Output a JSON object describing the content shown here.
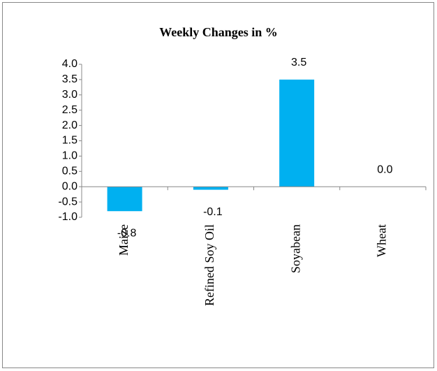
{
  "chart_data": {
    "type": "bar",
    "title": "Weekly Changes in %",
    "categories": [
      "Maize",
      "Refined Soy Oil",
      "Soyabean",
      "Wheat"
    ],
    "values": [
      -0.8,
      -0.1,
      3.5,
      0.0
    ],
    "value_labels": [
      "-0.8",
      "-0.1",
      "3.5",
      "0.0"
    ],
    "color": "#00b0f0",
    "ylim": [
      -1.0,
      4.0
    ],
    "yticks": [
      {
        "value": -1,
        "label": "-1.0"
      },
      -0.5,
      {
        "value": 0,
        "label": "0.0"
      },
      0.5,
      {
        "value": 1,
        "label": "1.0"
      },
      1.5,
      {
        "value": 2,
        "label": "2.0"
      },
      2.5,
      {
        "value": 3,
        "label": "3.0"
      },
      3.5,
      {
        "value": 4,
        "label": "4.0"
      }
    ],
    "grid": false
  }
}
